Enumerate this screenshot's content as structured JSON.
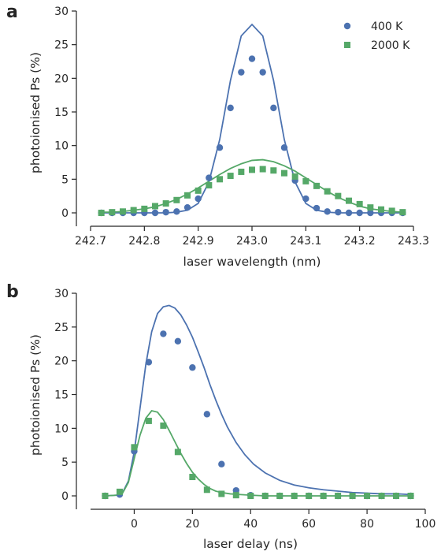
{
  "colors": {
    "s400": "#4c72b0",
    "s2000": "#55a868",
    "axis": "#262626"
  },
  "chart_data": [
    {
      "panel_label": "a",
      "type": "scatter",
      "xlabel": "laser wavelength (nm)",
      "ylabel": "photoionised Ps (%)",
      "xlim": [
        242.7,
        243.3
      ],
      "ylim": [
        0,
        30
      ],
      "xticks": [
        242.7,
        242.8,
        242.9,
        243.0,
        243.1,
        243.2,
        243.3
      ],
      "xtick_labels": [
        "242.7",
        "242.8",
        "242.9",
        "243.0",
        "243.1",
        "243.2",
        "243.3"
      ],
      "yticks": [
        0,
        5,
        10,
        15,
        20,
        25,
        30
      ],
      "ytick_labels": [
        "0",
        "5",
        "10",
        "15",
        "20",
        "25",
        "30"
      ],
      "grid": false,
      "legend_position": "top-right",
      "series": [
        {
          "name": "400 K",
          "marker": "circle",
          "color": "#4c72b0",
          "points": [
            [
              242.72,
              0.0
            ],
            [
              242.74,
              0.0
            ],
            [
              242.76,
              0.0
            ],
            [
              242.78,
              0.0
            ],
            [
              242.8,
              0.0
            ],
            [
              242.82,
              0.0
            ],
            [
              242.84,
              0.1
            ],
            [
              242.86,
              0.2
            ],
            [
              242.88,
              0.8
            ],
            [
              242.9,
              2.1
            ],
            [
              242.92,
              5.2
            ],
            [
              242.94,
              9.7
            ],
            [
              242.96,
              15.6
            ],
            [
              242.98,
              20.9
            ],
            [
              243.0,
              22.9
            ],
            [
              243.02,
              20.9
            ],
            [
              243.04,
              15.6
            ],
            [
              243.06,
              9.7
            ],
            [
              243.08,
              4.8
            ],
            [
              243.1,
              2.1
            ],
            [
              243.12,
              0.7
            ],
            [
              243.14,
              0.2
            ],
            [
              243.16,
              0.1
            ],
            [
              243.18,
              0.0
            ],
            [
              243.2,
              0.0
            ],
            [
              243.22,
              0.0
            ],
            [
              243.24,
              0.0
            ],
            [
              243.26,
              0.0
            ],
            [
              243.28,
              0.0
            ]
          ],
          "fit_curve": {
            "x": [
              242.72,
              242.74,
              242.76,
              242.78,
              242.8,
              242.82,
              242.84,
              242.86,
              242.88,
              242.9,
              242.92,
              242.94,
              242.96,
              242.98,
              243.0,
              243.02,
              243.04,
              243.06,
              243.08,
              243.1,
              243.12,
              243.14,
              243.16,
              243.18,
              243.2,
              243.22,
              243.24,
              243.26,
              243.28
            ],
            "y": [
              0.0,
              0.0,
              0.0,
              0.0,
              0.0,
              0.0,
              0.0,
              0.1,
              0.4,
              1.4,
              4.6,
              10.9,
              19.7,
              26.3,
              28.0,
              26.3,
              19.7,
              10.9,
              4.6,
              1.4,
              0.4,
              0.1,
              0.0,
              0.0,
              0.0,
              0.0,
              0.0,
              0.0,
              0.0
            ]
          }
        },
        {
          "name": "2000 K",
          "marker": "square",
          "color": "#55a868",
          "points": [
            [
              242.72,
              0.0
            ],
            [
              242.74,
              0.1
            ],
            [
              242.76,
              0.2
            ],
            [
              242.78,
              0.4
            ],
            [
              242.8,
              0.6
            ],
            [
              242.82,
              1.0
            ],
            [
              242.84,
              1.4
            ],
            [
              242.86,
              1.9
            ],
            [
              242.88,
              2.6
            ],
            [
              242.9,
              3.3
            ],
            [
              242.92,
              4.1
            ],
            [
              242.94,
              5.0
            ],
            [
              242.96,
              5.5
            ],
            [
              242.98,
              6.1
            ],
            [
              243.0,
              6.4
            ],
            [
              243.02,
              6.5
            ],
            [
              243.04,
              6.3
            ],
            [
              243.06,
              5.9
            ],
            [
              243.08,
              5.4
            ],
            [
              243.1,
              4.7
            ],
            [
              243.12,
              4.0
            ],
            [
              243.14,
              3.2
            ],
            [
              243.16,
              2.5
            ],
            [
              243.18,
              1.8
            ],
            [
              243.2,
              1.3
            ],
            [
              243.22,
              0.8
            ],
            [
              243.24,
              0.5
            ],
            [
              243.26,
              0.3
            ],
            [
              243.28,
              0.1
            ]
          ],
          "fit_curve": {
            "x": [
              242.72,
              242.74,
              242.76,
              242.78,
              242.8,
              242.82,
              242.84,
              242.86,
              242.88,
              242.9,
              242.92,
              242.94,
              242.96,
              242.98,
              243.0,
              243.02,
              243.04,
              243.06,
              243.08,
              243.1,
              243.12,
              243.14,
              243.16,
              243.18,
              243.2,
              243.22,
              243.24,
              243.26,
              243.28
            ],
            "y": [
              0.1,
              0.1,
              0.2,
              0.4,
              0.6,
              0.9,
              1.4,
              2.0,
              2.8,
              3.7,
              4.7,
              5.7,
              6.6,
              7.3,
              7.8,
              7.9,
              7.6,
              7.0,
              6.2,
              5.2,
              4.2,
              3.2,
              2.3,
              1.6,
              1.0,
              0.6,
              0.4,
              0.2,
              0.1
            ]
          }
        }
      ]
    },
    {
      "panel_label": "b",
      "type": "scatter",
      "xlabel": "laser delay (ns)",
      "ylabel": "photoionised Ps (%)",
      "xlim": [
        -15,
        100
      ],
      "ylim": [
        0,
        30
      ],
      "xticks": [
        0,
        20,
        40,
        60,
        80,
        100
      ],
      "xtick_labels": [
        "0",
        "20",
        "40",
        "60",
        "80",
        "100"
      ],
      "yticks": [
        0,
        5,
        10,
        15,
        20,
        25,
        30
      ],
      "ytick_labels": [
        "0",
        "5",
        "10",
        "15",
        "20",
        "25",
        "30"
      ],
      "grid": false,
      "legend_position": "none",
      "series": [
        {
          "name": "400 K",
          "marker": "circle",
          "color": "#4c72b0",
          "points": [
            [
              -10,
              0.0
            ],
            [
              -5,
              0.2
            ],
            [
              0,
              6.6
            ],
            [
              5,
              19.8
            ],
            [
              10,
              24.0
            ],
            [
              15,
              22.9
            ],
            [
              20,
              19.0
            ],
            [
              25,
              12.1
            ],
            [
              30,
              4.7
            ],
            [
              35,
              0.8
            ],
            [
              40,
              0.1
            ],
            [
              45,
              0.0
            ],
            [
              50,
              0.0
            ],
            [
              55,
              0.0
            ],
            [
              60,
              0.0
            ],
            [
              65,
              0.0
            ],
            [
              70,
              0.0
            ],
            [
              75,
              0.0
            ],
            [
              80,
              0.0
            ],
            [
              85,
              0.0
            ],
            [
              90,
              0.0
            ],
            [
              95,
              0.0
            ]
          ],
          "fit_curve": {
            "x": [
              -10,
              -6,
              -4,
              -2,
              0,
              2,
              4,
              6,
              8,
              10,
              12,
              14,
              16,
              18,
              20,
              22,
              24,
              26,
              28,
              30,
              32,
              35,
              38,
              41,
              45,
              50,
              55,
              60,
              65,
              70,
              75,
              80,
              85,
              90,
              95
            ],
            "y": [
              0.0,
              0.1,
              0.5,
              2.2,
              6.5,
              13.0,
              19.5,
              24.3,
              27.0,
              28.0,
              28.2,
              27.8,
              26.8,
              25.3,
              23.5,
              21.3,
              19.0,
              16.5,
              14.2,
              12.1,
              10.2,
              7.9,
              6.1,
              4.7,
              3.4,
              2.3,
              1.6,
              1.2,
              0.9,
              0.7,
              0.5,
              0.4,
              0.3,
              0.3,
              0.2
            ]
          }
        },
        {
          "name": "2000 K",
          "marker": "square",
          "color": "#55a868",
          "points": [
            [
              -10,
              0.0
            ],
            [
              -5,
              0.6
            ],
            [
              0,
              7.2
            ],
            [
              5,
              11.1
            ],
            [
              10,
              10.4
            ],
            [
              15,
              6.5
            ],
            [
              20,
              2.8
            ],
            [
              25,
              0.9
            ],
            [
              30,
              0.3
            ],
            [
              35,
              0.1
            ],
            [
              40,
              0.0
            ],
            [
              45,
              0.0
            ],
            [
              50,
              0.0
            ],
            [
              55,
              0.0
            ],
            [
              60,
              0.0
            ],
            [
              65,
              0.0
            ],
            [
              70,
              0.0
            ],
            [
              75,
              0.0
            ],
            [
              80,
              0.0
            ],
            [
              85,
              0.0
            ],
            [
              90,
              0.0
            ],
            [
              95,
              0.0
            ]
          ],
          "fit_curve": {
            "x": [
              -10,
              -6,
              -4,
              -2,
              0,
              2,
              4,
              6,
              8,
              10,
              12,
              14,
              16,
              18,
              20,
              22,
              24,
              26,
              28,
              30,
              33,
              36,
              40,
              45,
              50,
              60,
              70,
              80,
              95
            ],
            "y": [
              0.0,
              0.1,
              0.4,
              2.0,
              5.5,
              9.0,
              11.5,
              12.6,
              12.4,
              11.3,
              9.7,
              8.0,
              6.3,
              4.8,
              3.5,
              2.5,
              1.7,
              1.1,
              0.7,
              0.5,
              0.3,
              0.2,
              0.1,
              0.0,
              0.0,
              0.0,
              0.0,
              0.0,
              0.0
            ]
          }
        }
      ]
    }
  ]
}
